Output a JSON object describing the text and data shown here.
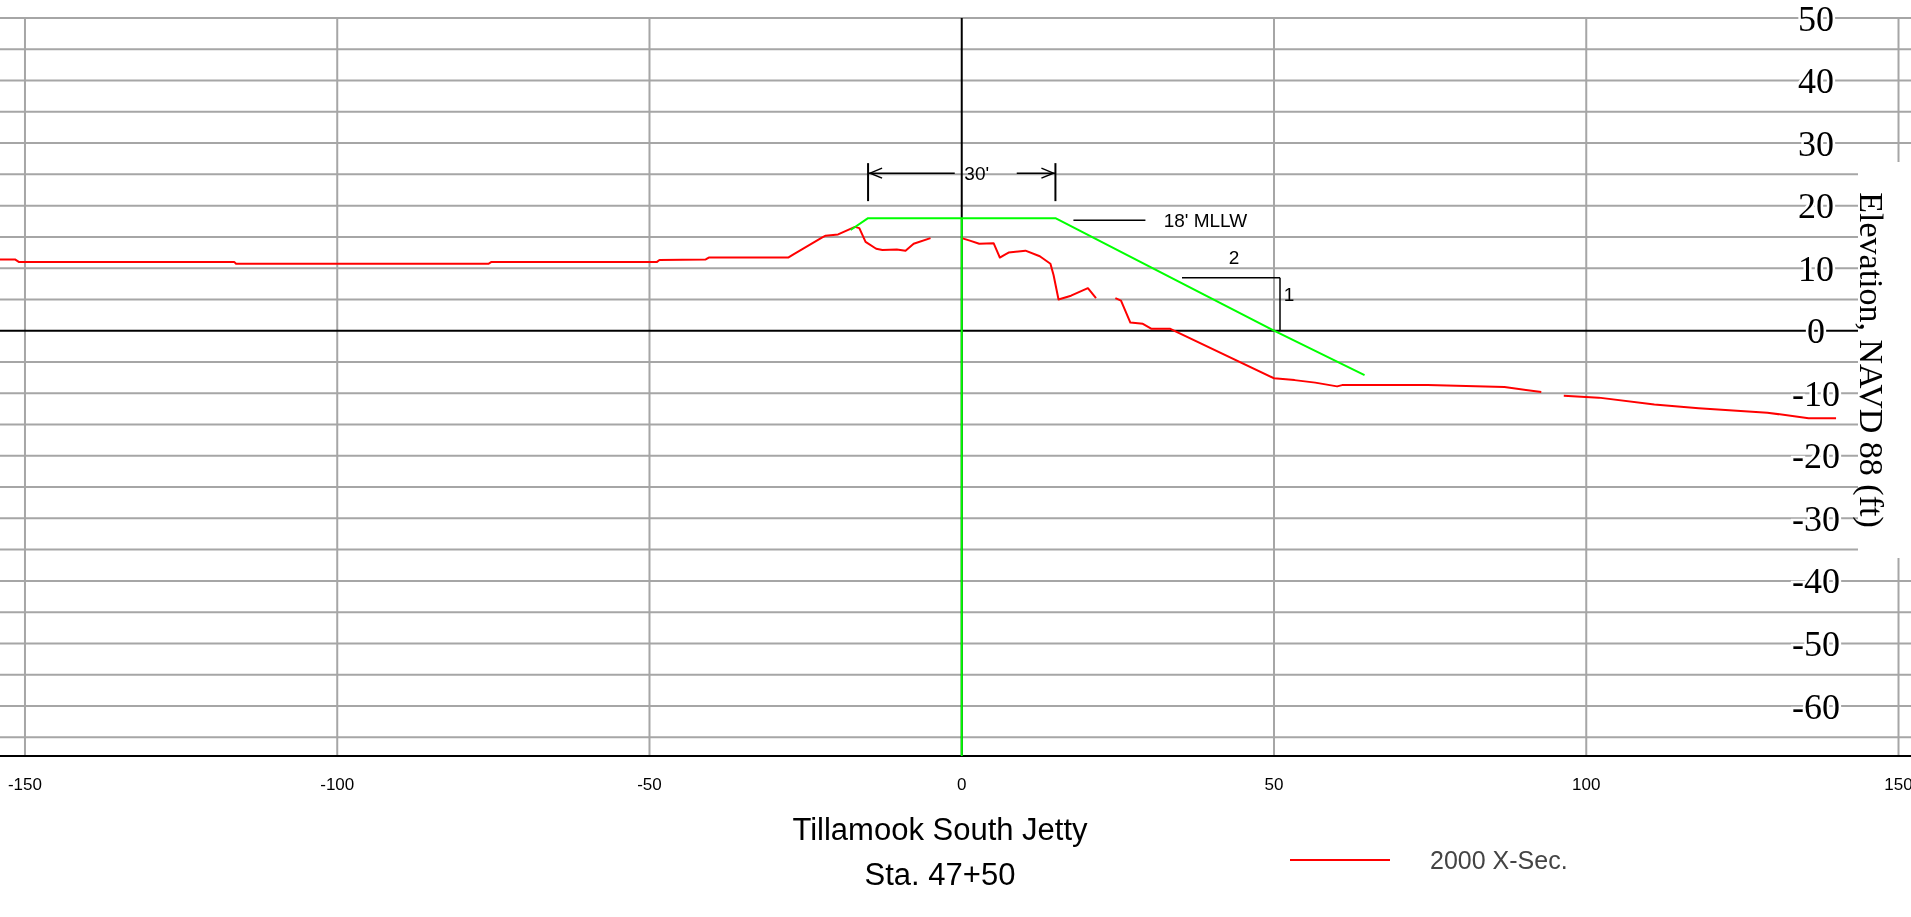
{
  "chart_data": {
    "type": "line",
    "title": "Tillamook South Jetty",
    "subtitle": "Sta. 47+50",
    "ylabel": "Elevation, NAVD 88 (ft)",
    "xlim": [
      -154,
      152
    ],
    "xticks": [
      -150,
      -100,
      -50,
      0,
      50,
      100,
      150
    ],
    "ylim": [
      -68,
      50
    ],
    "yticks": [
      50,
      {
        "value": 45,
        "label": null
      },
      40,
      {
        "value": 35,
        "label": null
      },
      30,
      {
        "value": 25,
        "label": null
      },
      20,
      {
        "value": 15,
        "label": null
      },
      10,
      {
        "value": 5,
        "label": null
      },
      0,
      {
        "value": -5,
        "label": null
      },
      -10,
      {
        "value": -15,
        "label": null
      },
      -20,
      {
        "value": -25,
        "label": null
      },
      -30,
      {
        "value": -35,
        "label": null
      },
      -40,
      {
        "value": -45,
        "label": null
      },
      -50,
      {
        "value": -55,
        "label": null
      },
      -60,
      {
        "value": -65,
        "label": null
      }
    ],
    "grid": true,
    "legend": "bottom right",
    "annotations": [
      "30'",
      "18' MLLW",
      "2",
      {
        "text": "1",
        "x": 50,
        "y": 0
      }
    ],
    "series": [
      {
        "name": "2000 X-Sec.",
        "color": "#ff0000",
        "x": [
          -154,
          -151.6,
          -151,
          -116.5,
          -116.2,
          -75.8,
          -75.3,
          -48.8,
          -48.4,
          -41,
          -40.5,
          -27.8,
          -22.4,
          -21.8,
          -19.8,
          -17.1,
          -16.4,
          -15.4,
          -13.7,
          -12.7,
          -10.4,
          -9,
          -7.7,
          -5,
          -2.5,
          0,
          1.3,
          2.8,
          5.1,
          6.1,
          7.5,
          10.2,
          12.5,
          14.2,
          14.7,
          15.5,
          17.5,
          20.2,
          21.5,
          23,
          24.6,
          25.5,
          27,
          29,
          30.4,
          33.4,
          34.4,
          50,
          53.3,
          56.6,
          60.1,
          60.9,
          74.6,
          86.9,
          92.8,
          94.5,
          96.4,
          102,
          110.9,
          118,
          129,
          135.6,
          140
        ],
        "values": [
          11.4,
          11.4,
          11,
          11,
          10.7,
          10.7,
          11,
          11,
          11.3,
          11.4,
          11.7,
          11.7,
          14.9,
          15.2,
          15.4,
          16.6,
          16.4,
          14.2,
          13.1,
          12.9,
          13,
          12.8,
          13.9,
          14.8,
          null,
          14.8,
          14.4,
          13.9,
          14,
          11.7,
          12.5,
          12.8,
          11.9,
          10.7,
          8.9,
          5,
          5.6,
          6.8,
          5.2,
          null,
          5.2,
          4.8,
          1.3,
          1.1,
          0.3,
          0.3,
          -0.2,
          -7.6,
          -7.9,
          -8.3,
          -8.9,
          -8.7,
          -8.7,
          -9,
          -9.8,
          null,
          -10.4,
          -10.7,
          -11.8,
          -12.4,
          -13.1,
          -14,
          -14
        ]
      },
      {
        "color": "#00ff00",
        "x": [
          -17.8,
          -15,
          15,
          50,
          64.5
        ],
        "values": [
          16.1,
          18,
          18,
          0,
          -7.1
        ]
      },
      {
        "color": "#00ff00",
        "x": [
          0,
          0
        ],
        "values": [
          18,
          -68
        ]
      }
    ]
  }
}
